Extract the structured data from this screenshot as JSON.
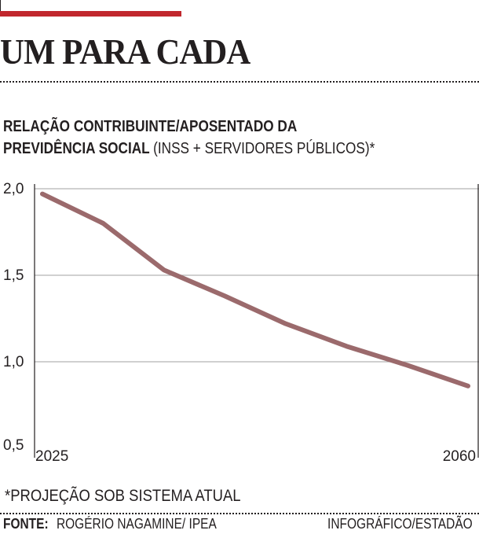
{
  "headline": "UM PARA CADA",
  "subtitle": {
    "bold": "RELAÇÃO CONTRIBUINTE/APOSENTADO DA PREVIDÊNCIA SOCIAL",
    "normal": "(INSS + SERVIDORES PÚBLICOS)*"
  },
  "footnote": "*PROJEÇÃO SOB SISTEMA ATUAL",
  "source": {
    "label": "FONTE:",
    "text": "ROGÉRIO NAGAMINE/ IPEA"
  },
  "credit": "INFOGRÁFICO/ESTADÃO",
  "colors": {
    "accent": "#c1272d",
    "line": "#9b6a6c",
    "grid": "#b3b3b3",
    "text": "#231f20"
  },
  "chart_data": {
    "type": "line",
    "x": [
      2025,
      2030,
      2035,
      2040,
      2045,
      2050,
      2055,
      2060
    ],
    "series": [
      {
        "values": [
          1.97,
          1.8,
          1.53,
          1.38,
          1.22,
          1.09,
          0.98,
          0.86
        ]
      }
    ],
    "x_tick_labels": [
      "2025",
      "2060"
    ],
    "y_ticks": [
      2.0,
      1.5,
      1.0,
      0.5
    ],
    "y_tick_labels": [
      "2,0",
      "1,5",
      "1,0",
      "0,5"
    ],
    "xlim": [
      2025,
      2060
    ],
    "ylim": [
      0.5,
      2.0
    ],
    "grid": true
  }
}
